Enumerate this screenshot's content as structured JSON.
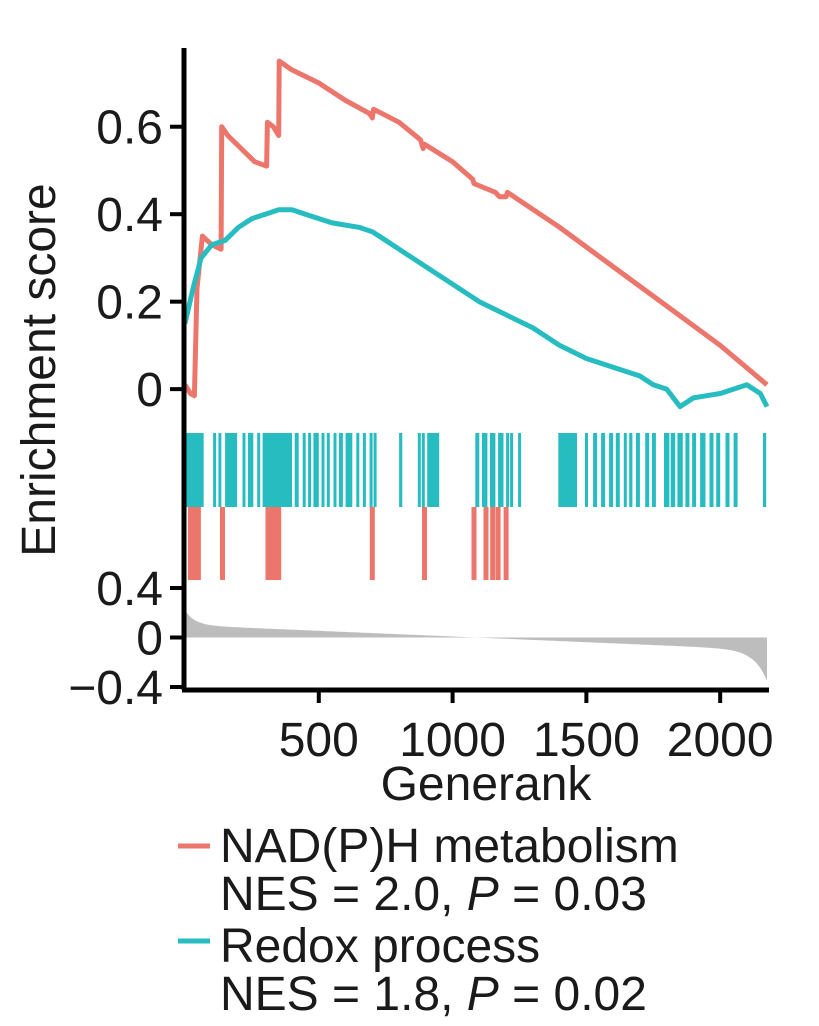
{
  "chart_data": {
    "type": "line",
    "title": "",
    "xlabel": "Generank",
    "ylabel": "Enrichment score",
    "xlim": [
      0,
      2175
    ],
    "ylim": [
      -0.05,
      0.78
    ],
    "rank_ylim": [
      -0.4,
      0.4
    ],
    "x_ticks": [
      500,
      1000,
      1500,
      2000
    ],
    "y_ticks": [
      {
        "value": 0,
        "label": "0"
      },
      {
        "value": 0.2,
        "label": "0.2"
      },
      {
        "value": 0.4,
        "label": "0.4"
      },
      {
        "value": 0.6,
        "label": "0.6"
      }
    ],
    "rank_ticks": [
      {
        "value": 0.4,
        "label": "0.4"
      },
      {
        "value": 0,
        "label": "0"
      },
      {
        "value": -0.4,
        "label": "−0.4"
      }
    ],
    "colors": {
      "nadph": "#ec766b",
      "redox": "#27bcc0",
      "rank": "#bdbdbd",
      "axis": "#000000"
    },
    "series": [
      {
        "name": "NAD(P)H metabolism",
        "color": "#ec766b",
        "x": [
          0,
          20,
          35,
          45,
          65,
          100,
          135,
          137,
          160,
          260,
          305,
          308,
          330,
          340,
          350,
          352,
          400,
          500,
          600,
          690,
          700,
          705,
          800,
          880,
          890,
          895,
          1000,
          1075,
          1080,
          1120,
          1160,
          1175,
          1200,
          1205,
          1400,
          1600,
          1800,
          2000,
          2175
        ],
        "values": [
          0.01,
          -0.01,
          -0.015,
          0.23,
          0.35,
          0.33,
          0.32,
          0.6,
          0.58,
          0.52,
          0.51,
          0.61,
          0.6,
          0.59,
          0.58,
          0.75,
          0.73,
          0.7,
          0.66,
          0.63,
          0.62,
          0.64,
          0.61,
          0.57,
          0.55,
          0.56,
          0.52,
          0.48,
          0.47,
          0.46,
          0.45,
          0.44,
          0.44,
          0.45,
          0.37,
          0.28,
          0.19,
          0.1,
          0.01
        ]
      },
      {
        "name": "Redox process",
        "color": "#27bcc0",
        "x": [
          0,
          30,
          60,
          100,
          150,
          200,
          250,
          300,
          350,
          400,
          450,
          500,
          550,
          600,
          650,
          700,
          750,
          800,
          900,
          1000,
          1100,
          1200,
          1300,
          1400,
          1500,
          1600,
          1700,
          1750,
          1800,
          1850,
          1900,
          1950,
          2000,
          2050,
          2100,
          2150,
          2175
        ],
        "values": [
          0.15,
          0.23,
          0.3,
          0.33,
          0.34,
          0.37,
          0.39,
          0.4,
          0.41,
          0.41,
          0.4,
          0.39,
          0.38,
          0.375,
          0.37,
          0.36,
          0.34,
          0.32,
          0.28,
          0.24,
          0.2,
          0.17,
          0.14,
          0.1,
          0.07,
          0.05,
          0.03,
          0.01,
          0.0,
          -0.04,
          -0.02,
          -0.015,
          -0.01,
          0.0,
          0.01,
          -0.01,
          -0.04
        ]
      }
    ],
    "redox_hits": [
      [
        0,
        70
      ],
      [
        105,
        115
      ],
      [
        125,
        135
      ],
      [
        150,
        195
      ],
      [
        215,
        225
      ],
      [
        235,
        255
      ],
      [
        270,
        280
      ],
      [
        290,
        400
      ],
      [
        410,
        425
      ],
      [
        440,
        450
      ],
      [
        460,
        470
      ],
      [
        480,
        500
      ],
      [
        510,
        520
      ],
      [
        530,
        540
      ],
      [
        555,
        565
      ],
      [
        575,
        590
      ],
      [
        600,
        625
      ],
      [
        640,
        650
      ],
      [
        665,
        675
      ],
      [
        690,
        700
      ],
      [
        705,
        712
      ],
      [
        800,
        812
      ],
      [
        870,
        880
      ],
      [
        885,
        895
      ],
      [
        905,
        950
      ],
      [
        1085,
        1100
      ],
      [
        1110,
        1130
      ],
      [
        1140,
        1160
      ],
      [
        1170,
        1190
      ],
      [
        1200,
        1210
      ],
      [
        1215,
        1225
      ],
      [
        1245,
        1255
      ],
      [
        1395,
        1465
      ],
      [
        1495,
        1505
      ],
      [
        1525,
        1540
      ],
      [
        1555,
        1570
      ],
      [
        1585,
        1600
      ],
      [
        1610,
        1625
      ],
      [
        1640,
        1650
      ],
      [
        1660,
        1672
      ],
      [
        1685,
        1700
      ],
      [
        1720,
        1735
      ],
      [
        1745,
        1760
      ],
      [
        1790,
        1810
      ],
      [
        1815,
        1832
      ],
      [
        1840,
        1860
      ],
      [
        1870,
        1885
      ],
      [
        1895,
        1910
      ],
      [
        1925,
        1945
      ],
      [
        1960,
        1975
      ],
      [
        1985,
        2000
      ],
      [
        2020,
        2035
      ],
      [
        2050,
        2065
      ],
      [
        2160,
        2172
      ]
    ],
    "nadph_hits": [
      20,
      35,
      50,
      140,
      310,
      320,
      335,
      350,
      700,
      895,
      1080,
      1125,
      1150,
      1170,
      1200
    ],
    "legend": [
      {
        "name": "NAD(P)H metabolism",
        "stat_prefix": "NES = 2.0, ",
        "p_symbol": "P",
        "p_value": " = 0.03",
        "color": "#ec766b"
      },
      {
        "name": "Redox process",
        "stat_prefix": "NES = 1.8, ",
        "p_symbol": "P",
        "p_value": " = 0.02",
        "color": "#27bcc0"
      }
    ]
  }
}
